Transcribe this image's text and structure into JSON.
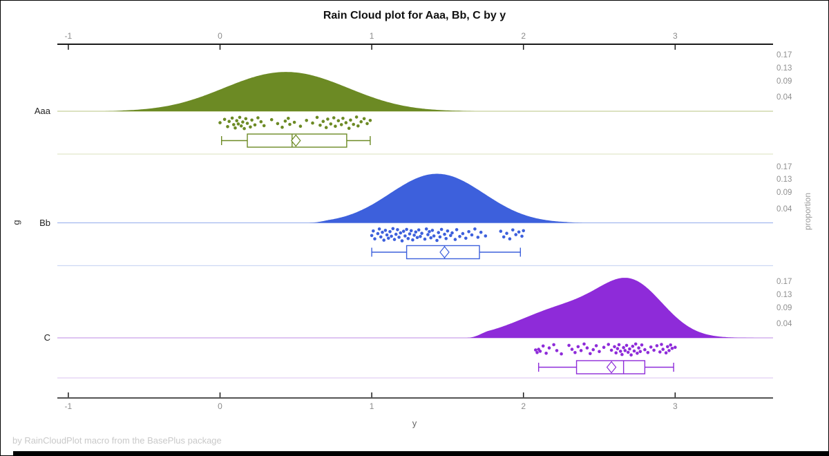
{
  "title": "Rain Cloud plot for Aaa, Bb, C by y",
  "footnote": "by RainCloudPlot macro from the BasePlus package",
  "axes": {
    "x_label": "y",
    "y_label": "g",
    "y2_label": "proportion",
    "x_tick_labels": [
      "-1",
      "0",
      "1",
      "2",
      "3"
    ],
    "x_tick_values": [
      -1,
      0,
      1,
      2,
      3
    ],
    "prop_tick_labels": [
      "0.17",
      "0.13",
      "0.09",
      "0.04"
    ],
    "prop_tick_values": [
      0.17,
      0.13,
      0.09,
      0.04
    ]
  },
  "chart_data": {
    "type": "raincloud",
    "title": "Rain Cloud plot for Aaa, Bb, C by y",
    "xlabel": "y",
    "ylabel": "g",
    "y2label": "proportion",
    "xlim": [
      -1.07,
      3.65
    ],
    "x_ticks": [
      -1,
      0,
      1,
      2,
      3
    ],
    "proportion_ticks": [
      0.17,
      0.13,
      0.09,
      0.04
    ],
    "legend": "none",
    "groups": [
      {
        "label": "Aaa",
        "color": "#6C8A24",
        "baseline_color": "#c6d09b",
        "separator_color": "#e0e6cb",
        "density": {
          "mixture": [
            {
              "mean": 0.25,
              "sd": 0.34,
              "weight": 0.5
            },
            {
              "mean": 0.62,
              "sd": 0.34,
              "weight": 0.5
            }
          ],
          "support": [
            -0.78,
            1.72
          ],
          "peak_proportion": 0.121
        },
        "box": {
          "low": 0.01,
          "q1": 0.18,
          "median": 0.475,
          "q3": 0.835,
          "high": 0.99,
          "mean": 0.5
        },
        "points": [
          [
            0.0,
            0.45
          ],
          [
            0.03,
            0.2
          ],
          [
            0.05,
            0.75
          ],
          [
            0.06,
            0.35
          ],
          [
            0.08,
            0.1
          ],
          [
            0.09,
            0.6
          ],
          [
            0.1,
            0.85
          ],
          [
            0.11,
            0.3
          ],
          [
            0.12,
            0.55
          ],
          [
            0.13,
            0.05
          ],
          [
            0.14,
            0.7
          ],
          [
            0.15,
            0.4
          ],
          [
            0.16,
            0.9
          ],
          [
            0.17,
            0.15
          ],
          [
            0.18,
            0.5
          ],
          [
            0.2,
            0.78
          ],
          [
            0.21,
            0.25
          ],
          [
            0.23,
            0.62
          ],
          [
            0.25,
            0.08
          ],
          [
            0.27,
            0.38
          ],
          [
            0.29,
            0.68
          ],
          [
            0.34,
            0.22
          ],
          [
            0.38,
            0.52
          ],
          [
            0.41,
            0.8
          ],
          [
            0.43,
            0.33
          ],
          [
            0.45,
            0.12
          ],
          [
            0.46,
            0.58
          ],
          [
            0.49,
            0.42
          ],
          [
            0.53,
            0.72
          ],
          [
            0.57,
            0.28
          ],
          [
            0.61,
            0.48
          ],
          [
            0.64,
            0.05
          ],
          [
            0.66,
            0.65
          ],
          [
            0.68,
            0.35
          ],
          [
            0.7,
            0.82
          ],
          [
            0.71,
            0.18
          ],
          [
            0.73,
            0.55
          ],
          [
            0.75,
            0.08
          ],
          [
            0.76,
            0.72
          ],
          [
            0.78,
            0.3
          ],
          [
            0.8,
            0.6
          ],
          [
            0.81,
            0.12
          ],
          [
            0.83,
            0.45
          ],
          [
            0.85,
            0.88
          ],
          [
            0.86,
            0.25
          ],
          [
            0.88,
            0.58
          ],
          [
            0.9,
            0.02
          ],
          [
            0.91,
            0.7
          ],
          [
            0.93,
            0.38
          ],
          [
            0.95,
            0.15
          ],
          [
            0.97,
            0.52
          ],
          [
            0.99,
            0.28
          ]
        ]
      },
      {
        "label": "Bb",
        "color": "#3D60DC",
        "baseline_color": "#a2b7ee",
        "separator_color": "#ccd8f4",
        "density": {
          "mixture": [
            {
              "mean": 1.3,
              "sd": 0.27,
              "weight": 0.5
            },
            {
              "mean": 1.56,
              "sd": 0.27,
              "weight": 0.5
            }
          ],
          "support": [
            0.57,
            2.42
          ],
          "peak_proportion": 0.151
        },
        "box": {
          "low": 1.0,
          "q1": 1.23,
          "median": 1.48,
          "q3": 1.71,
          "high": 1.98,
          "mean": 1.48
        },
        "points": [
          [
            1.0,
            0.55
          ],
          [
            1.01,
            0.2
          ],
          [
            1.02,
            0.8
          ],
          [
            1.04,
            0.4
          ],
          [
            1.05,
            0.05
          ],
          [
            1.06,
            0.65
          ],
          [
            1.07,
            0.3
          ],
          [
            1.08,
            0.9
          ],
          [
            1.09,
            0.15
          ],
          [
            1.1,
            0.5
          ],
          [
            1.11,
            0.75
          ],
          [
            1.12,
            0.25
          ],
          [
            1.13,
            0.6
          ],
          [
            1.14,
            0.02
          ],
          [
            1.15,
            0.85
          ],
          [
            1.16,
            0.45
          ],
          [
            1.17,
            0.1
          ],
          [
            1.18,
            0.68
          ],
          [
            1.19,
            0.35
          ],
          [
            1.2,
            0.95
          ],
          [
            1.21,
            0.22
          ],
          [
            1.22,
            0.58
          ],
          [
            1.23,
            0.08
          ],
          [
            1.24,
            0.78
          ],
          [
            1.25,
            0.42
          ],
          [
            1.26,
            0.18
          ],
          [
            1.27,
            0.88
          ],
          [
            1.28,
            0.52
          ],
          [
            1.29,
            0.28
          ],
          [
            1.3,
            0.7
          ],
          [
            1.31,
            0.12
          ],
          [
            1.32,
            0.62
          ],
          [
            1.33,
            0.38
          ],
          [
            1.35,
            0.82
          ],
          [
            1.36,
            0.05
          ],
          [
            1.37,
            0.48
          ],
          [
            1.38,
            0.25
          ],
          [
            1.39,
            0.72
          ],
          [
            1.4,
            0.15
          ],
          [
            1.41,
            0.58
          ],
          [
            1.43,
            0.92
          ],
          [
            1.44,
            0.32
          ],
          [
            1.45,
            0.65
          ],
          [
            1.46,
            0.08
          ],
          [
            1.48,
            0.45
          ],
          [
            1.49,
            0.78
          ],
          [
            1.5,
            0.2
          ],
          [
            1.52,
            0.55
          ],
          [
            1.53,
            0.35
          ],
          [
            1.55,
            0.85
          ],
          [
            1.56,
            0.1
          ],
          [
            1.58,
            0.62
          ],
          [
            1.6,
            0.4
          ],
          [
            1.62,
            0.75
          ],
          [
            1.64,
            0.25
          ],
          [
            1.66,
            0.5
          ],
          [
            1.68,
            0.05
          ],
          [
            1.7,
            0.68
          ],
          [
            1.72,
            0.3
          ],
          [
            1.75,
            0.58
          ],
          [
            1.85,
            0.22
          ],
          [
            1.87,
            0.65
          ],
          [
            1.89,
            0.38
          ],
          [
            1.91,
            0.8
          ],
          [
            1.93,
            0.12
          ],
          [
            1.95,
            0.48
          ],
          [
            1.97,
            0.28
          ],
          [
            1.99,
            0.6
          ],
          [
            2.0,
            0.18
          ]
        ]
      },
      {
        "label": "C",
        "color": "#8E2BD9",
        "baseline_color": "#c9a1ea",
        "separator_color": "#e2cdf4",
        "density": {
          "mixture": [
            {
              "mean": 2.72,
              "sd": 0.21,
              "weight": 0.62
            },
            {
              "mean": 2.28,
              "sd": 0.3,
              "weight": 0.38
            }
          ],
          "support": [
            1.62,
            3.64
          ],
          "peak_proportion": 0.185
        },
        "box": {
          "low": 2.1,
          "q1": 2.35,
          "median": 2.66,
          "q3": 2.8,
          "high": 2.99,
          "mean": 2.58
        },
        "points": [
          [
            2.08,
            0.5
          ],
          [
            2.09,
            0.7
          ],
          [
            2.1,
            0.45
          ],
          [
            2.11,
            0.6
          ],
          [
            2.13,
            0.2
          ],
          [
            2.15,
            0.75
          ],
          [
            2.17,
            0.35
          ],
          [
            2.2,
            0.1
          ],
          [
            2.22,
            0.55
          ],
          [
            2.25,
            0.8
          ],
          [
            2.3,
            0.15
          ],
          [
            2.32,
            0.45
          ],
          [
            2.34,
            0.7
          ],
          [
            2.36,
            0.25
          ],
          [
            2.38,
            0.55
          ],
          [
            2.4,
            0.05
          ],
          [
            2.42,
            0.35
          ],
          [
            2.44,
            0.78
          ],
          [
            2.46,
            0.48
          ],
          [
            2.48,
            0.18
          ],
          [
            2.5,
            0.62
          ],
          [
            2.53,
            0.3
          ],
          [
            2.56,
            0.08
          ],
          [
            2.58,
            0.52
          ],
          [
            2.6,
            0.25
          ],
          [
            2.61,
            0.72
          ],
          [
            2.62,
            0.4
          ],
          [
            2.63,
            0.1
          ],
          [
            2.64,
            0.6
          ],
          [
            2.65,
            0.85
          ],
          [
            2.66,
            0.32
          ],
          [
            2.67,
            0.55
          ],
          [
            2.68,
            0.15
          ],
          [
            2.69,
            0.68
          ],
          [
            2.7,
            0.42
          ],
          [
            2.71,
            0.88
          ],
          [
            2.72,
            0.22
          ],
          [
            2.73,
            0.58
          ],
          [
            2.74,
            0.05
          ],
          [
            2.75,
            0.75
          ],
          [
            2.76,
            0.35
          ],
          [
            2.77,
            0.62
          ],
          [
            2.78,
            0.12
          ],
          [
            2.8,
            0.48
          ],
          [
            2.82,
            0.7
          ],
          [
            2.84,
            0.28
          ],
          [
            2.86,
            0.52
          ],
          [
            2.88,
            0.18
          ],
          [
            2.9,
            0.65
          ],
          [
            2.91,
            0.08
          ],
          [
            2.92,
            0.45
          ],
          [
            2.94,
            0.72
          ],
          [
            2.95,
            0.25
          ],
          [
            2.96,
            0.55
          ],
          [
            2.97,
            0.12
          ],
          [
            2.98,
            0.38
          ],
          [
            3.0,
            0.3
          ]
        ]
      }
    ]
  }
}
